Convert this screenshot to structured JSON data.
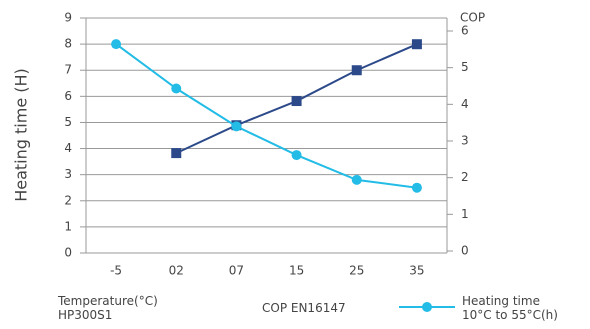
{
  "chart_data": {
    "type": "line",
    "y_label": "Heating time (H)",
    "y2_label": "COP",
    "x_label": "Temperature(°C)",
    "x_sublabel": "HP300S1",
    "categories": [
      "-5",
      "02",
      "07",
      "15",
      "25",
      "35"
    ],
    "series": [
      {
        "name": "COP EN16147",
        "color": "#2c4a8a",
        "axis": "y2",
        "marker": "square",
        "values": [
          null,
          2.67,
          3.43,
          4.09,
          4.93,
          5.64
        ]
      },
      {
        "name": "Heating time 10°C to 55°C(h)",
        "color": "#22bce6",
        "marker": "circle",
        "values": [
          8,
          6.3,
          4.85,
          3.75,
          2.8,
          2.5
        ]
      }
    ],
    "ylim": [
      0,
      9
    ],
    "yticks": [
      0,
      1,
      2,
      3,
      4,
      5,
      6,
      7,
      8,
      9
    ],
    "y2lim": [
      0,
      6
    ],
    "y2ticks": [
      0,
      1,
      2,
      3,
      4,
      5,
      6
    ],
    "grid": true
  }
}
